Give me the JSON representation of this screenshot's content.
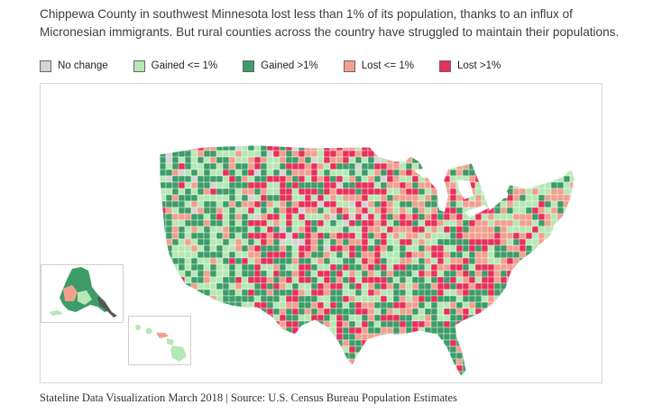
{
  "description": "Chippewa County in southwest Minnesota lost less than 1% of its population, thanks to an influx of Micronesian immigrants. But rural counties across the country have struggled to maintain their populations.",
  "legend": {
    "items": [
      {
        "label": "No change",
        "color": "#d4d4d4"
      },
      {
        "label": "Gained <= 1%",
        "color": "#b5e8b4"
      },
      {
        "label": "Gained >1%",
        "color": "#3d9c68"
      },
      {
        "label": "Lost <= 1%",
        "color": "#f2a08d"
      },
      {
        "label": "Lost >1%",
        "color": "#e8305a"
      }
    ]
  },
  "source": "Stateline Data Visualization March 2018 | Source: U.S. Census Bureau Population Estimates"
}
